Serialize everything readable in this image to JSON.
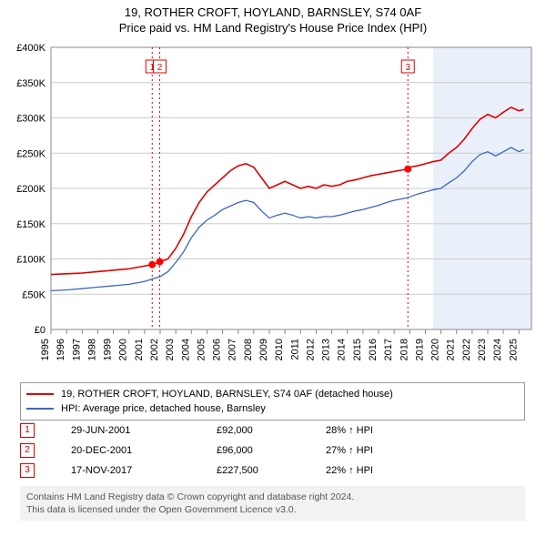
{
  "title_main": "19, ROTHER CROFT, HOYLAND, BARNSLEY, S74 0AF",
  "title_sub": "Price paid vs. HM Land Registry's House Price Index (HPI)",
  "chart": {
    "type": "line",
    "background_color": "#ffffff",
    "plot_bg_color": "#ffffff",
    "future_band_color": "#eaf0fa",
    "grid_color": "#cccccc",
    "axis_color": "#888888",
    "border_color": "#888888",
    "tick_font_size": 11,
    "marker_line_color": "#e00000",
    "marker_line_dash": "2,3",
    "marker_box_border": "#e00000",
    "marker_box_text": "#e00000",
    "marker_point_fill": "#ff0000",
    "marker_point_radius": 4,
    "x": {
      "min": 1995,
      "max": 2025.8,
      "ticks": [
        1995,
        1996,
        1997,
        1998,
        1999,
        2000,
        2001,
        2002,
        2003,
        2004,
        2005,
        2006,
        2007,
        2008,
        2009,
        2010,
        2011,
        2012,
        2013,
        2014,
        2015,
        2016,
        2017,
        2018,
        2019,
        2020,
        2021,
        2022,
        2023,
        2024,
        2025
      ],
      "tick_labels": [
        "1995",
        "1996",
        "1997",
        "1998",
        "1999",
        "2000",
        "2001",
        "2002",
        "2003",
        "2004",
        "2005",
        "2006",
        "2007",
        "2008",
        "2009",
        "2010",
        "2011",
        "2012",
        "2013",
        "2014",
        "2015",
        "2016",
        "2017",
        "2018",
        "2019",
        "2020",
        "2021",
        "2022",
        "2023",
        "2024",
        "2025"
      ]
    },
    "y": {
      "min": 0,
      "max": 400000,
      "ticks": [
        0,
        50000,
        100000,
        150000,
        200000,
        250000,
        300000,
        350000,
        400000
      ],
      "tick_labels": [
        "£0",
        "£50K",
        "£100K",
        "£150K",
        "£200K",
        "£250K",
        "£300K",
        "£350K",
        "£400K"
      ]
    },
    "future_band_from": 2019.5,
    "series": [
      {
        "id": "price_paid",
        "label": "19, ROTHER CROFT, HOYLAND, BARNSLEY, S74 0AF (detached house)",
        "color": "#e00000",
        "width": 1.6,
        "points": [
          [
            1995.0,
            78000
          ],
          [
            1996.0,
            79000
          ],
          [
            1997.0,
            80000
          ],
          [
            1998.0,
            82000
          ],
          [
            1999.0,
            84000
          ],
          [
            2000.0,
            86000
          ],
          [
            2001.0,
            90000
          ],
          [
            2001.5,
            92000
          ],
          [
            2002.0,
            96000
          ],
          [
            2002.5,
            100000
          ],
          [
            2003.0,
            115000
          ],
          [
            2003.5,
            135000
          ],
          [
            2004.0,
            160000
          ],
          [
            2004.5,
            180000
          ],
          [
            2005.0,
            195000
          ],
          [
            2005.5,
            205000
          ],
          [
            2006.0,
            215000
          ],
          [
            2006.5,
            225000
          ],
          [
            2007.0,
            232000
          ],
          [
            2007.5,
            235000
          ],
          [
            2008.0,
            230000
          ],
          [
            2008.5,
            215000
          ],
          [
            2009.0,
            200000
          ],
          [
            2009.5,
            205000
          ],
          [
            2010.0,
            210000
          ],
          [
            2010.5,
            205000
          ],
          [
            2011.0,
            200000
          ],
          [
            2011.5,
            203000
          ],
          [
            2012.0,
            200000
          ],
          [
            2012.5,
            205000
          ],
          [
            2013.0,
            203000
          ],
          [
            2013.5,
            205000
          ],
          [
            2014.0,
            210000
          ],
          [
            2014.5,
            212000
          ],
          [
            2015.0,
            215000
          ],
          [
            2015.5,
            218000
          ],
          [
            2016.0,
            220000
          ],
          [
            2016.5,
            222000
          ],
          [
            2017.0,
            224000
          ],
          [
            2017.88,
            227500
          ],
          [
            2018.0,
            230000
          ],
          [
            2018.5,
            232000
          ],
          [
            2019.0,
            235000
          ],
          [
            2019.5,
            238000
          ],
          [
            2020.0,
            240000
          ],
          [
            2020.5,
            250000
          ],
          [
            2021.0,
            258000
          ],
          [
            2021.5,
            270000
          ],
          [
            2022.0,
            285000
          ],
          [
            2022.5,
            298000
          ],
          [
            2023.0,
            305000
          ],
          [
            2023.5,
            300000
          ],
          [
            2024.0,
            308000
          ],
          [
            2024.5,
            315000
          ],
          [
            2025.0,
            310000
          ],
          [
            2025.3,
            312000
          ]
        ]
      },
      {
        "id": "hpi",
        "label": "HPI: Average price, detached house, Barnsley",
        "color": "#3a66c4",
        "width": 1.3,
        "points": [
          [
            1995.0,
            55000
          ],
          [
            1996.0,
            56000
          ],
          [
            1997.0,
            58000
          ],
          [
            1998.0,
            60000
          ],
          [
            1999.0,
            62000
          ],
          [
            2000.0,
            64000
          ],
          [
            2001.0,
            68000
          ],
          [
            2002.0,
            75000
          ],
          [
            2002.5,
            82000
          ],
          [
            2003.0,
            95000
          ],
          [
            2003.5,
            110000
          ],
          [
            2004.0,
            130000
          ],
          [
            2004.5,
            145000
          ],
          [
            2005.0,
            155000
          ],
          [
            2005.5,
            162000
          ],
          [
            2006.0,
            170000
          ],
          [
            2006.5,
            175000
          ],
          [
            2007.0,
            180000
          ],
          [
            2007.5,
            183000
          ],
          [
            2008.0,
            180000
          ],
          [
            2008.5,
            168000
          ],
          [
            2009.0,
            158000
          ],
          [
            2009.5,
            162000
          ],
          [
            2010.0,
            165000
          ],
          [
            2010.5,
            162000
          ],
          [
            2011.0,
            158000
          ],
          [
            2011.5,
            160000
          ],
          [
            2012.0,
            158000
          ],
          [
            2012.5,
            160000
          ],
          [
            2013.0,
            160000
          ],
          [
            2013.5,
            162000
          ],
          [
            2014.0,
            165000
          ],
          [
            2014.5,
            168000
          ],
          [
            2015.0,
            170000
          ],
          [
            2015.5,
            173000
          ],
          [
            2016.0,
            176000
          ],
          [
            2016.5,
            180000
          ],
          [
            2017.0,
            183000
          ],
          [
            2017.88,
            187000
          ],
          [
            2018.0,
            188000
          ],
          [
            2018.5,
            192000
          ],
          [
            2019.0,
            195000
          ],
          [
            2019.5,
            198000
          ],
          [
            2020.0,
            200000
          ],
          [
            2020.5,
            208000
          ],
          [
            2021.0,
            215000
          ],
          [
            2021.5,
            225000
          ],
          [
            2022.0,
            238000
          ],
          [
            2022.5,
            248000
          ],
          [
            2023.0,
            252000
          ],
          [
            2023.5,
            246000
          ],
          [
            2024.0,
            252000
          ],
          [
            2024.5,
            258000
          ],
          [
            2025.0,
            252000
          ],
          [
            2025.3,
            255000
          ]
        ]
      }
    ],
    "markers": [
      {
        "n": "1",
        "x": 2001.49,
        "y": 92000
      },
      {
        "n": "2",
        "x": 2001.97,
        "y": 96000
      },
      {
        "n": "3",
        "x": 2017.88,
        "y": 227500
      }
    ]
  },
  "legend": {
    "rows": [
      {
        "color": "#e00000",
        "label": "19, ROTHER CROFT, HOYLAND, BARNSLEY, S74 0AF (detached house)"
      },
      {
        "color": "#3a66c4",
        "label": "HPI: Average price, detached house, Barnsley"
      }
    ]
  },
  "marker_table": {
    "arrow": "↑",
    "suffix": "HPI",
    "rows": [
      {
        "n": "1",
        "date": "29-JUN-2001",
        "price": "£92,000",
        "pct": "28%"
      },
      {
        "n": "2",
        "date": "20-DEC-2001",
        "price": "£96,000",
        "pct": "27%"
      },
      {
        "n": "3",
        "date": "17-NOV-2017",
        "price": "£227,500",
        "pct": "22%"
      }
    ]
  },
  "footer": {
    "line1": "Contains HM Land Registry data © Crown copyright and database right 2024.",
    "line2": "This data is licensed under the Open Government Licence v3.0."
  }
}
